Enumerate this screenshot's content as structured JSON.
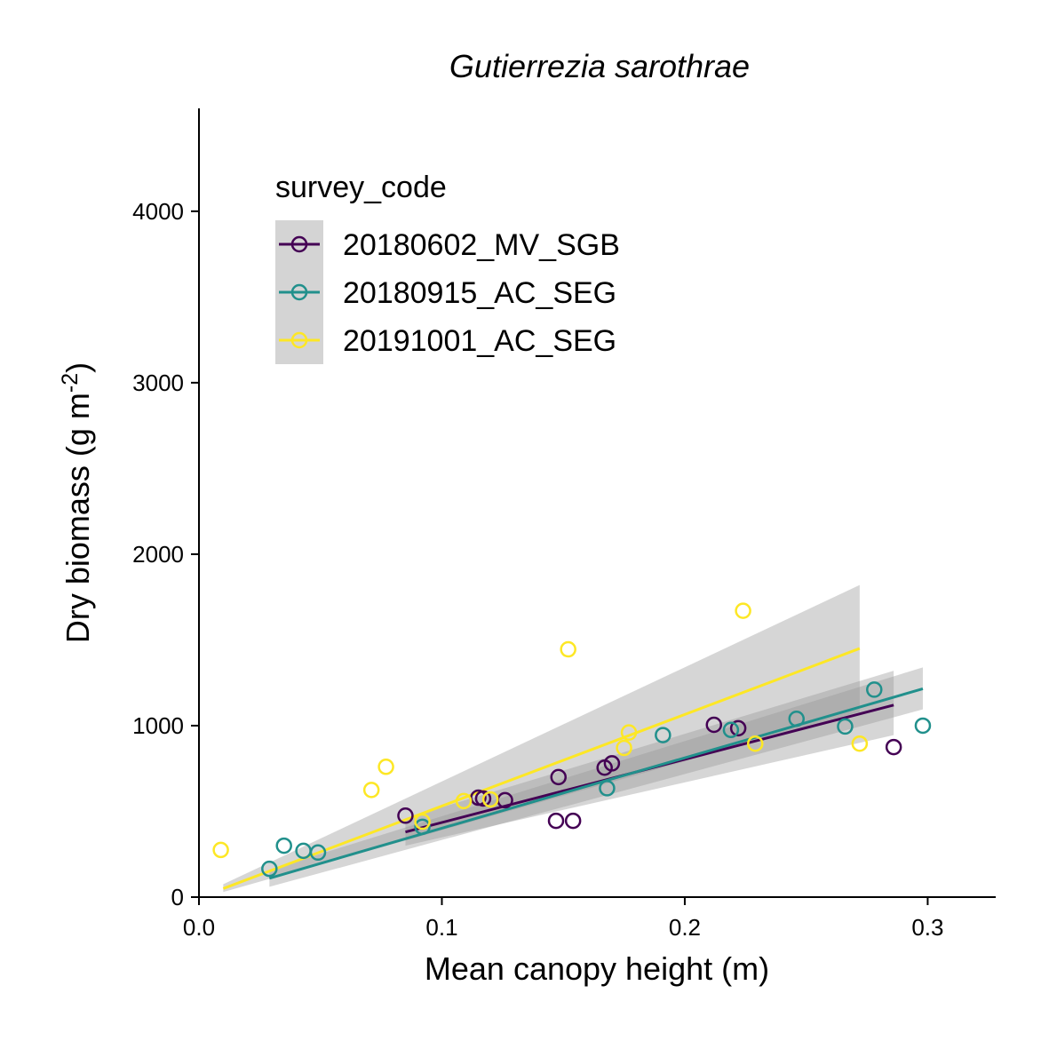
{
  "chart_data": {
    "type": "scatter",
    "title": "Gutierrezia sarothrae",
    "xlabel": "Mean canopy height (m)",
    "ylabel_main": "Dry biomass (g m",
    "ylabel_sup": "-2",
    "ylabel_end": ")",
    "xlim": [
      0,
      0.328
    ],
    "ylim": [
      0,
      4600
    ],
    "x_ticks": [
      0.0,
      0.1,
      0.2,
      0.3
    ],
    "x_tick_labels": [
      "0.0",
      "0.1",
      "0.2",
      "0.3"
    ],
    "y_ticks": [
      0,
      1000,
      2000,
      3000,
      4000
    ],
    "y_tick_labels": [
      "0",
      "1000",
      "2000",
      "3000",
      "4000"
    ],
    "grid": false,
    "legend": {
      "title": "survey_code",
      "placement": "top-left"
    },
    "series": [
      {
        "name": "20180602_MV_SGB",
        "color": "#440154",
        "points": [
          {
            "x": 0.085,
            "y": 475
          },
          {
            "x": 0.115,
            "y": 580
          },
          {
            "x": 0.117,
            "y": 575
          },
          {
            "x": 0.126,
            "y": 565
          },
          {
            "x": 0.147,
            "y": 445
          },
          {
            "x": 0.148,
            "y": 700
          },
          {
            "x": 0.154,
            "y": 445
          },
          {
            "x": 0.167,
            "y": 755
          },
          {
            "x": 0.17,
            "y": 780
          },
          {
            "x": 0.212,
            "y": 1005
          },
          {
            "x": 0.222,
            "y": 985
          },
          {
            "x": 0.286,
            "y": 875
          }
        ],
        "fit": {
          "x0": 0.085,
          "y0": 380,
          "x1": 0.286,
          "y1": 1120
        },
        "ribbon": [
          {
            "x": 0.085,
            "lo": 300,
            "hi": 460
          },
          {
            "x": 0.286,
            "lo": 945,
            "hi": 1320
          }
        ]
      },
      {
        "name": "20180915_AC_SEG",
        "color": "#21908C",
        "points": [
          {
            "x": 0.029,
            "y": 165
          },
          {
            "x": 0.035,
            "y": 300
          },
          {
            "x": 0.043,
            "y": 270
          },
          {
            "x": 0.049,
            "y": 260
          },
          {
            "x": 0.092,
            "y": 410
          },
          {
            "x": 0.168,
            "y": 635
          },
          {
            "x": 0.191,
            "y": 945
          },
          {
            "x": 0.219,
            "y": 975
          },
          {
            "x": 0.246,
            "y": 1040
          },
          {
            "x": 0.266,
            "y": 995
          },
          {
            "x": 0.278,
            "y": 1210
          },
          {
            "x": 0.298,
            "y": 1000
          }
        ],
        "fit": {
          "x0": 0.029,
          "y0": 110,
          "x1": 0.298,
          "y1": 1215
        },
        "ribbon": [
          {
            "x": 0.029,
            "lo": 60,
            "hi": 160
          },
          {
            "x": 0.298,
            "lo": 1095,
            "hi": 1340
          }
        ]
      },
      {
        "name": "20191001_AC_SEG",
        "color": "#FDE725",
        "points": [
          {
            "x": 0.009,
            "y": 275
          },
          {
            "x": 0.071,
            "y": 625
          },
          {
            "x": 0.077,
            "y": 760
          },
          {
            "x": 0.092,
            "y": 440
          },
          {
            "x": 0.109,
            "y": 560
          },
          {
            "x": 0.12,
            "y": 570
          },
          {
            "x": 0.152,
            "y": 1445
          },
          {
            "x": 0.175,
            "y": 870
          },
          {
            "x": 0.177,
            "y": 960
          },
          {
            "x": 0.224,
            "y": 1670
          },
          {
            "x": 0.229,
            "y": 895
          },
          {
            "x": 0.272,
            "y": 895
          }
        ],
        "fit": {
          "x0": 0.01,
          "y0": 50,
          "x1": 0.272,
          "y1": 1450
        },
        "ribbon": [
          {
            "x": 0.01,
            "lo": 30,
            "hi": 75
          },
          {
            "x": 0.272,
            "lo": 1080,
            "hi": 1820
          }
        ]
      }
    ]
  }
}
